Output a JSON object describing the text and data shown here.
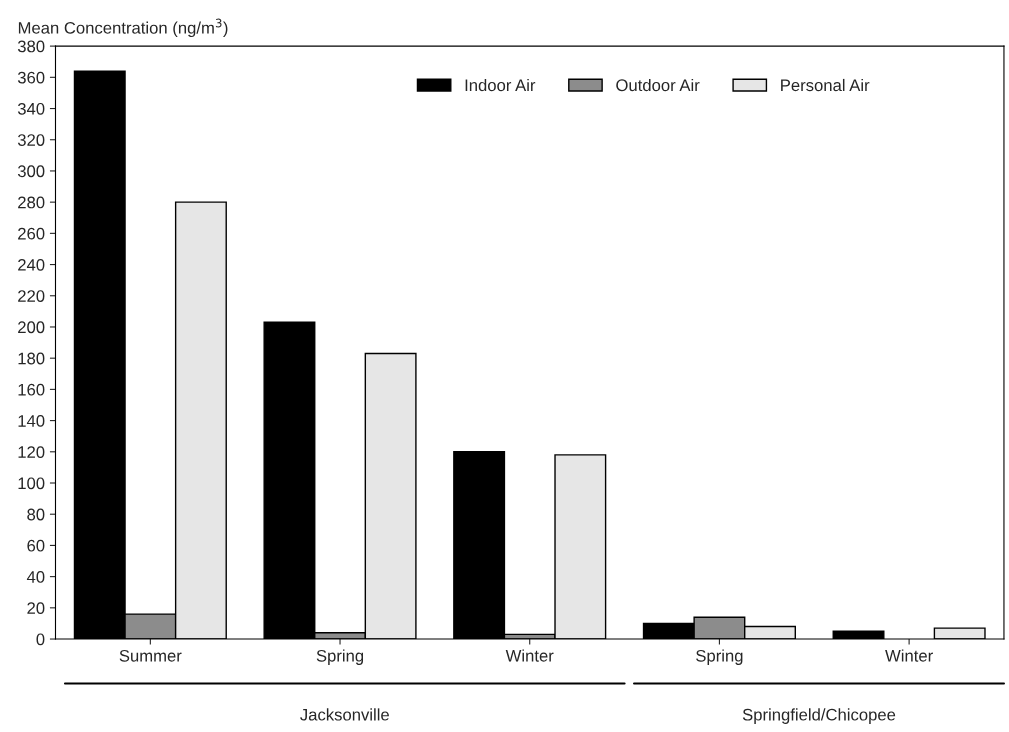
{
  "chart_data": {
    "type": "bar",
    "ylabel": "Mean Concentration (ng/m$^{3}$)",
    "categories": [
      "Summer",
      "Spring",
      "Winter",
      "Spring",
      "Winter"
    ],
    "series": [
      {
        "name": "Indoor Air",
        "color": "#000000",
        "values": [
          364,
          203,
          120,
          10,
          5
        ]
      },
      {
        "name": "Outdoor Air",
        "color": "#8c8c8c",
        "values": [
          16,
          4,
          3,
          14,
          0
        ]
      },
      {
        "name": "Personal Air",
        "color": "#e6e6e6",
        "values": [
          280,
          183,
          118,
          8,
          7
        ]
      }
    ],
    "ylim": [
      0,
      380
    ],
    "yticks": [
      0,
      20,
      40,
      60,
      80,
      100,
      120,
      140,
      160,
      180,
      200,
      220,
      240,
      260,
      280,
      300,
      320,
      340,
      360,
      380
    ],
    "annotations": [
      "Jacksonville",
      "Springfield/Chicopee"
    ],
    "grid": false,
    "legend": "top"
  }
}
